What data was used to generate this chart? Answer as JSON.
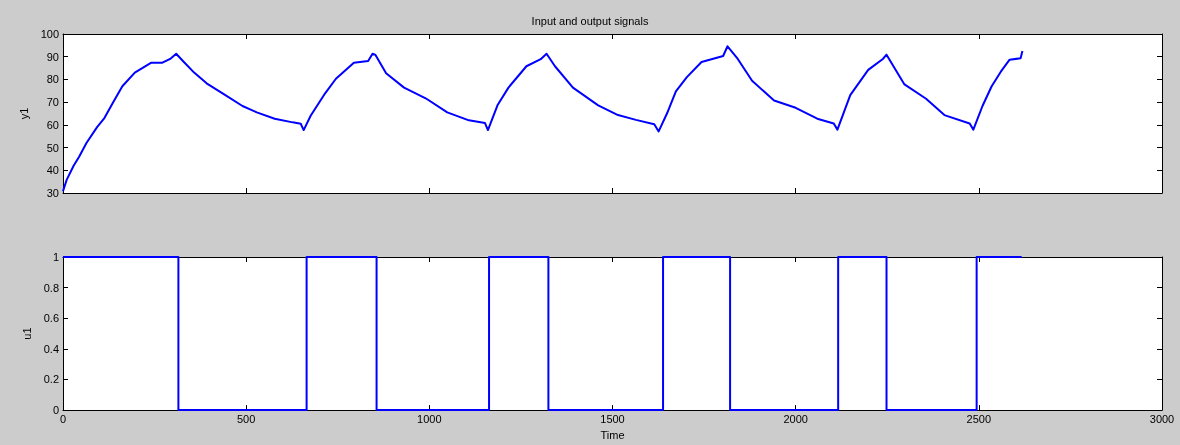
{
  "chart_data": [
    {
      "type": "line",
      "title": "Input and output signals",
      "ylabel": "y1",
      "tick_labels": "y",
      "marker": "none",
      "x": [
        0,
        10,
        29,
        44,
        64,
        93,
        113,
        137,
        162,
        196,
        240,
        270,
        294,
        309,
        328,
        358,
        392,
        441,
        490,
        529,
        578,
        627,
        649,
        657,
        676,
        716,
        745,
        794,
        833,
        845,
        853,
        882,
        931,
        990,
        1049,
        1108,
        1152,
        1160,
        1186,
        1216,
        1265,
        1304,
        1320,
        1343,
        1392,
        1461,
        1515,
        1564,
        1614,
        1626,
        1649,
        1673,
        1703,
        1743,
        1802,
        1814,
        1842,
        1881,
        1941,
        2000,
        2059,
        2104,
        2114,
        2149,
        2198,
        2238,
        2248,
        2297,
        2356,
        2406,
        2475,
        2485,
        2510,
        2535,
        2560,
        2584,
        2614,
        2619
      ],
      "series": [
        {
          "color": "#0000ff",
          "values": [
            30.8,
            35.8,
            42,
            46,
            52,
            59,
            63,
            70,
            77,
            83,
            87.3,
            87.3,
            89.2,
            91.3,
            88,
            83,
            78.3,
            73.3,
            68.3,
            65.5,
            62.7,
            61.1,
            60.5,
            57.7,
            64,
            74,
            80.3,
            87.3,
            88.1,
            91.3,
            90.8,
            82.7,
            76.4,
            71.7,
            65.5,
            62,
            60.8,
            57.7,
            68.6,
            76.4,
            85.8,
            88.9,
            91.3,
            85.8,
            76.4,
            68.6,
            64.3,
            62.2,
            60.3,
            57.1,
            65.1,
            74.7,
            81,
            87.7,
            90.3,
            94.6,
            89,
            79.4,
            70.7,
            67.5,
            62.7,
            60.6,
            57.9,
            73.1,
            84.2,
            89,
            90.9,
            77.8,
            71.5,
            64.3,
            60.6,
            57.9,
            68.3,
            77,
            83.4,
            88.7,
            89.3,
            92.5
          ]
        }
      ],
      "xlim": [
        0,
        3000
      ],
      "xticks": [
        0,
        500,
        1000,
        1500,
        2000,
        2500,
        3000
      ],
      "ylim": [
        30,
        100
      ],
      "yticks": [
        30,
        40,
        50,
        60,
        70,
        80,
        90,
        100
      ]
    },
    {
      "type": "step",
      "xlabel": "Time",
      "ylabel": "u1",
      "marker": "none",
      "x": [
        0,
        315,
        665,
        856,
        1163,
        1325,
        1638,
        1821,
        2116,
        2248,
        2494,
        2617
      ],
      "series": [
        {
          "color": "#0000ff",
          "values": [
            1,
            0,
            1,
            0,
            1,
            0,
            1,
            0,
            1,
            0,
            1,
            1
          ]
        }
      ],
      "xlim": [
        0,
        3000
      ],
      "xticks": [
        0,
        500,
        1000,
        1500,
        2000,
        2500,
        3000
      ],
      "ylim": [
        0,
        1
      ],
      "yticks": [
        0,
        0.2,
        0.4,
        0.6,
        0.8,
        1
      ]
    }
  ]
}
